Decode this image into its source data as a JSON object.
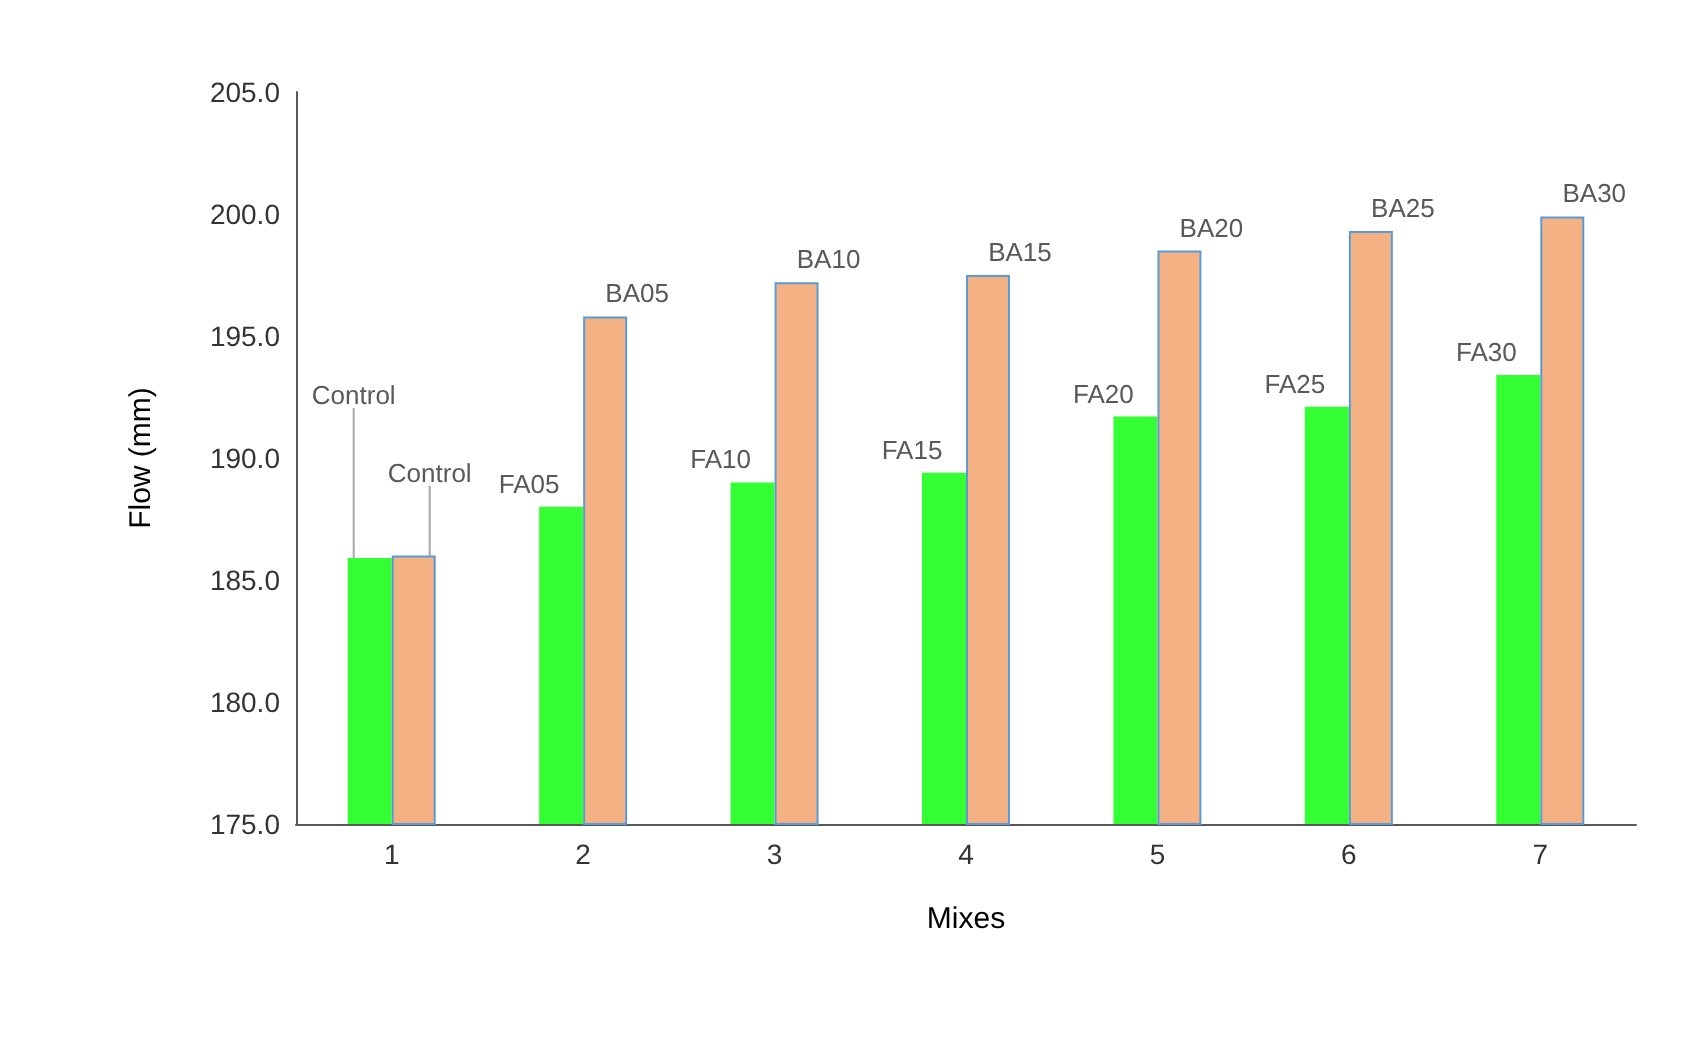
{
  "chart_data": {
    "type": "bar",
    "xlabel": "Mixes",
    "ylabel": "Flow (mm)",
    "categories": [
      "1",
      "2",
      "3",
      "4",
      "5",
      "6",
      "7"
    ],
    "series": [
      {
        "color": "#33ff33",
        "values": [
          185.9,
          188.0,
          189.0,
          189.4,
          191.7,
          192.1,
          193.4
        ],
        "value_labels": [
          "Control",
          "FA05",
          "FA10",
          "FA15",
          "FA20",
          "FA25",
          "FA30"
        ]
      },
      {
        "color": "#f4b183",
        "values": [
          186.0,
          195.8,
          197.2,
          197.5,
          198.5,
          199.3,
          199.9
        ],
        "value_labels": [
          "Control",
          "BA05",
          "BA10",
          "BA15",
          "BA20",
          "BA25",
          "BA30"
        ]
      }
    ],
    "ylim": [
      175,
      205
    ],
    "yticks": [
      {
        "value": 175,
        "label": "175.0"
      },
      {
        "value": 180,
        "label": "180.0"
      },
      {
        "value": 185,
        "label": "185.0"
      },
      {
        "value": 190,
        "label": "190.0"
      },
      {
        "value": 195,
        "label": "195.0"
      },
      {
        "value": 200,
        "label": "200.0"
      },
      {
        "value": 205,
        "label": "205.0"
      }
    ],
    "grid": false
  }
}
